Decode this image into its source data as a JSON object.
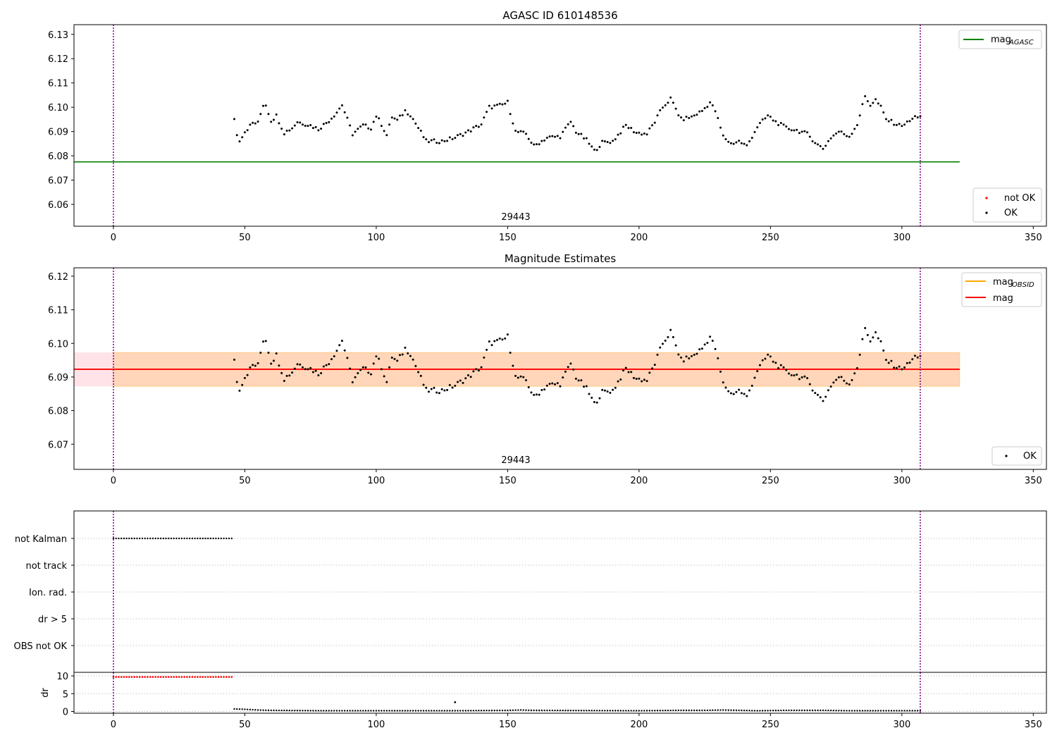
{
  "chart_data": [
    {
      "type": "scatter",
      "title": "AGASC ID 610148536",
      "ylim": [
        6.051,
        6.134
      ],
      "xlim": [
        -15,
        355
      ],
      "xticks": [
        0,
        50,
        100,
        150,
        200,
        250,
        300,
        350
      ],
      "yticks": [
        6.06,
        6.07,
        6.08,
        6.09,
        6.1,
        6.11,
        6.12,
        6.13
      ],
      "ytick_labels": [
        "6.06",
        "6.07",
        "6.08",
        "6.09",
        "6.10",
        "6.11",
        "6.12",
        "6.13"
      ],
      "obsid_label": "29443",
      "vlines": [
        0,
        307
      ],
      "hlines": [
        {
          "name": "mag_AGASC",
          "legend_text": "mag",
          "legend_sub": "AGASC",
          "y": 6.0775,
          "x": [
            -15,
            322
          ],
          "color": "#008000"
        }
      ],
      "series": [
        {
          "name": "OK",
          "color": "#000000",
          "ref": "mag_points"
        }
      ],
      "legend_lines": [
        {
          "text": "mag",
          "sub": "AGASC",
          "color": "#008000"
        }
      ],
      "legend_points": [
        {
          "text": "not OK",
          "color": "#ff0000"
        },
        {
          "text": "OK",
          "color": "#000000"
        }
      ]
    },
    {
      "type": "scatter",
      "title": "Magnitude Estimates",
      "ylim": [
        6.0625,
        6.1225
      ],
      "xlim": [
        -15,
        355
      ],
      "xticks": [
        0,
        50,
        100,
        150,
        200,
        250,
        300,
        350
      ],
      "yticks": [
        6.07,
        6.08,
        6.09,
        6.1,
        6.11,
        6.12
      ],
      "ytick_labels": [
        "6.07",
        "6.08",
        "6.09",
        "6.10",
        "6.11",
        "6.12"
      ],
      "obsid_label": "29443",
      "vlines": [
        0,
        307
      ],
      "mag_line": {
        "y": 6.0923,
        "x": [
          -15,
          322
        ],
        "color": "#ff0000"
      },
      "obsid_band": {
        "y": [
          6.0872,
          6.0973
        ],
        "x": [
          -15,
          322
        ],
        "color": "#ffa500"
      },
      "mag_band": {
        "y": [
          6.0872,
          6.0973
        ],
        "x": [
          -15,
          322
        ],
        "color": "#ffc0cb"
      },
      "series": [
        {
          "name": "OK",
          "color": "#000000",
          "ref": "mag_points"
        }
      ],
      "legend_lines": [
        {
          "text": "mag",
          "sub": "OBSID",
          "color": "#ffa500"
        },
        {
          "text": "mag",
          "sub": "",
          "color": "#ff0000"
        }
      ],
      "legend_points": [
        {
          "text": "OK",
          "color": "#000000"
        }
      ]
    },
    {
      "type": "scatter",
      "title": "",
      "categories": [
        "OBS not OK",
        "dr > 5",
        "Ion. rad.",
        "not track",
        "not Kalman"
      ],
      "flags": {
        "not Kalman": [
          0,
          45
        ],
        "not track": [],
        "Ion. rad.": [],
        "dr > 5": [],
        "OBS not OK": []
      },
      "vlines": [
        0,
        307
      ]
    },
    {
      "type": "scatter",
      "title": "",
      "ylabel": "dr",
      "ylim": [
        -0.5,
        11
      ],
      "yticks": [
        0,
        5,
        10
      ],
      "ytick_labels": [
        "0",
        "5",
        "10"
      ],
      "xticks": [
        0,
        50,
        100,
        150,
        200,
        250,
        300,
        350
      ],
      "vlines": [
        0,
        307
      ],
      "dr_high": {
        "x": [
          0,
          45
        ],
        "y": 9.7,
        "color": "#ff0000"
      },
      "dr_outlier": {
        "x": 130,
        "y": 2.6
      },
      "dr_segments": [
        [
          46,
          0.7
        ],
        [
          50,
          0.6
        ],
        [
          55,
          0.4
        ],
        [
          60,
          0.3
        ],
        [
          80,
          0.2
        ],
        [
          100,
          0.2
        ],
        [
          130,
          0.2
        ],
        [
          150,
          0.3
        ],
        [
          155,
          0.4
        ],
        [
          160,
          0.3
        ],
        [
          200,
          0.2
        ],
        [
          215,
          0.3
        ],
        [
          225,
          0.3
        ],
        [
          232,
          0.4
        ],
        [
          245,
          0.2
        ],
        [
          255,
          0.3
        ],
        [
          270,
          0.3
        ],
        [
          280,
          0.2
        ],
        [
          307,
          0.2
        ]
      ]
    }
  ],
  "mag_points": {
    "x_start": 46,
    "x_end": 307,
    "anchors": [
      [
        46,
        6.0955
      ],
      [
        47,
        6.0885
      ],
      [
        48,
        6.0865
      ],
      [
        50,
        6.09
      ],
      [
        53,
        6.0935
      ],
      [
        55,
        6.0935
      ],
      [
        57,
        6.101
      ],
      [
        58,
        6.101
      ],
      [
        60,
        6.0945
      ],
      [
        62,
        6.0965
      ],
      [
        65,
        6.0895
      ],
      [
        68,
        6.0915
      ],
      [
        70,
        6.094
      ],
      [
        75,
        6.0925
      ],
      [
        78,
        6.091
      ],
      [
        82,
        6.0945
      ],
      [
        85,
        6.098
      ],
      [
        87,
        6.101
      ],
      [
        89,
        6.095
      ],
      [
        91,
        6.089
      ],
      [
        95,
        6.0925
      ],
      [
        98,
        6.0915
      ],
      [
        100,
        6.0965
      ],
      [
        102,
        6.093
      ],
      [
        104,
        6.0885
      ],
      [
        106,
        6.096
      ],
      [
        108,
        6.0945
      ],
      [
        111,
        6.0985
      ],
      [
        113,
        6.097
      ],
      [
        116,
        6.0915
      ],
      [
        119,
        6.086
      ],
      [
        122,
        6.086
      ],
      [
        125,
        6.086
      ],
      [
        130,
        6.0875
      ],
      [
        135,
        6.09
      ],
      [
        140,
        6.093
      ],
      [
        143,
        6.1
      ],
      [
        146,
        6.1005
      ],
      [
        148,
        6.101
      ],
      [
        150,
        6.102
      ],
      [
        153,
        6.09
      ],
      [
        157,
        6.089
      ],
      [
        160,
        6.084
      ],
      [
        165,
        6.0875
      ],
      [
        170,
        6.088
      ],
      [
        174,
        6.094
      ],
      [
        176,
        6.09
      ],
      [
        180,
        6.0865
      ],
      [
        183,
        6.082
      ],
      [
        186,
        6.0855
      ],
      [
        190,
        6.086
      ],
      [
        195,
        6.0925
      ],
      [
        199,
        6.0895
      ],
      [
        203,
        6.089
      ],
      [
        206,
        6.094
      ],
      [
        209,
        6.1
      ],
      [
        212,
        6.1035
      ],
      [
        216,
        6.095
      ],
      [
        220,
        6.096
      ],
      [
        224,
        6.0985
      ],
      [
        227,
        6.102
      ],
      [
        229,
        6.0985
      ],
      [
        232,
        6.088
      ],
      [
        235,
        6.085
      ],
      [
        238,
        6.086
      ],
      [
        241,
        6.084
      ],
      [
        245,
        6.092
      ],
      [
        249,
        6.0965
      ],
      [
        252,
        6.094
      ],
      [
        256,
        6.0915
      ],
      [
        260,
        6.0905
      ],
      [
        264,
        6.089
      ],
      [
        268,
        6.0845
      ],
      [
        270,
        6.083
      ],
      [
        273,
        6.0875
      ],
      [
        276,
        6.09
      ],
      [
        280,
        6.088
      ],
      [
        283,
        6.093
      ],
      [
        286,
        6.1045
      ],
      [
        288,
        6.101
      ],
      [
        290,
        6.103
      ],
      [
        292,
        6.1
      ],
      [
        294,
        6.095
      ],
      [
        296,
        6.094
      ],
      [
        299,
        6.0925
      ],
      [
        302,
        6.0935
      ],
      [
        305,
        6.096
      ],
      [
        307,
        6.0965
      ]
    ]
  }
}
